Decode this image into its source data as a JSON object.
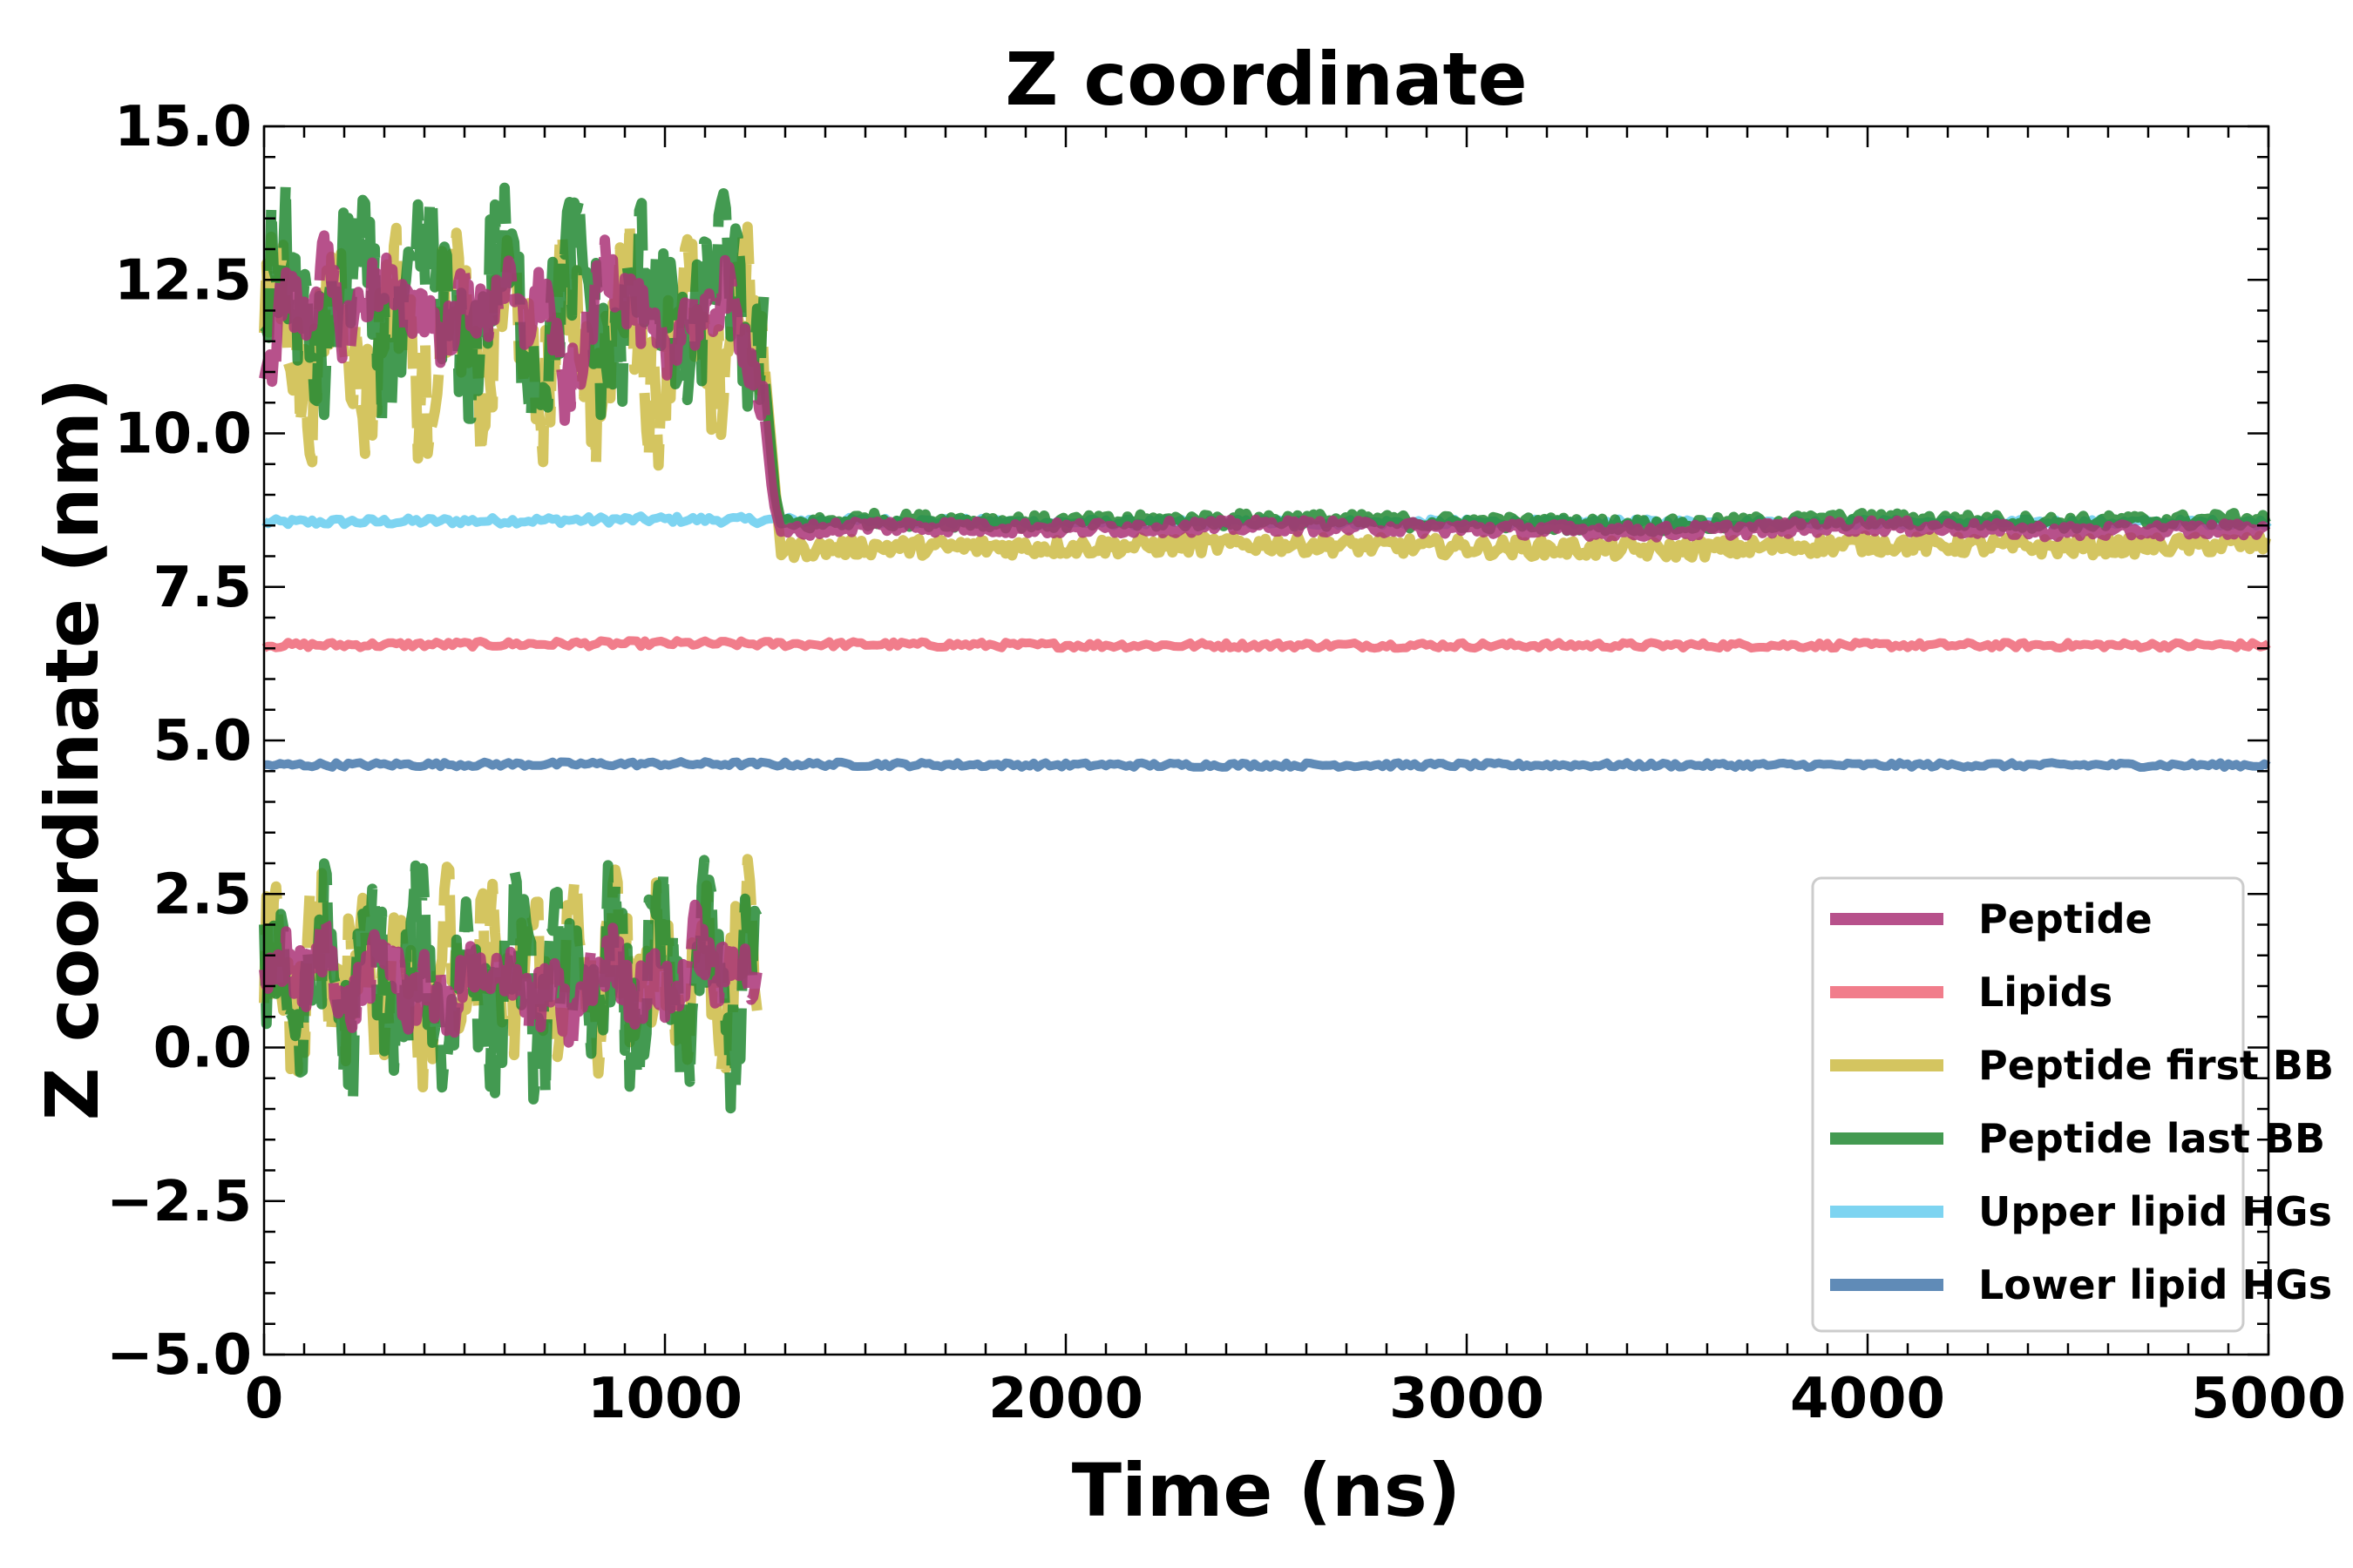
{
  "chart_data": {
    "type": "line",
    "title": "Z coordinate",
    "xlabel": "Time (ns)",
    "ylabel": "Z coordinate (nm)",
    "xlim": [
      0,
      5000
    ],
    "ylim": [
      -5.0,
      15.0
    ],
    "xticks": [
      0,
      1000,
      2000,
      3000,
      4000,
      5000
    ],
    "yticks": [
      -5.0,
      -2.5,
      0.0,
      2.5,
      5.0,
      7.5,
      10.0,
      12.5,
      15.0
    ],
    "xtick_labels": [
      "0",
      "1000",
      "2000",
      "3000",
      "4000",
      "5000"
    ],
    "ytick_labels": [
      "−5.0",
      "−2.5",
      "0.0",
      "2.5",
      "5.0",
      "7.5",
      "10.0",
      "12.5",
      "15.0"
    ],
    "grid": false,
    "legend_position": "lower-right",
    "series": [
      {
        "name": "Peptide",
        "color": "#aa3377",
        "before_transition": "alternates between about 10.5-13 nm and 0-2.5 nm (periodic boundary wrapping)",
        "x": [
          0,
          50,
          100,
          150,
          200,
          250,
          300,
          350,
          400,
          450,
          500,
          550,
          600,
          650,
          700,
          750,
          800,
          850,
          900,
          950,
          1000,
          1050,
          1100,
          1150,
          1200,
          1230,
          1250,
          1270,
          1290,
          1500,
          2000,
          2500,
          3000,
          3500,
          4000,
          4500,
          5000
        ],
        "upper_y": [
          10.5,
          12.4,
          11.8,
          12.8,
          11.6,
          12.2,
          12.6,
          11.9,
          12.1,
          11.5,
          12.3,
          11.8,
          12.5,
          11.7,
          12.4,
          10.6,
          11.4,
          12.8,
          12.3,
          11.8,
          11.2,
          12.0,
          11.7,
          12.4,
          11.5,
          10.8,
          10.2,
          8.9,
          8.4,
          8.5,
          8.45,
          8.5,
          8.45,
          8.4,
          8.5,
          8.4,
          8.45
        ],
        "lower_y": [
          0.8,
          1.5,
          1.0,
          1.8,
          0.5,
          1.2,
          1.6,
          0.7,
          1.1,
          0.5,
          1.3,
          0.9,
          1.4,
          0.6,
          1.0,
          0.3,
          1.2,
          1.5,
          0.8,
          1.1,
          0.7,
          1.9,
          1.0,
          1.6,
          0.8
        ]
      },
      {
        "name": "Lipids",
        "color": "#ee6677",
        "x": [
          0,
          1000,
          2000,
          3000,
          4000,
          5000
        ],
        "y": [
          6.55,
          6.58,
          6.55,
          6.55,
          6.55,
          6.55
        ]
      },
      {
        "name": "Peptide first BB",
        "color": "#ccbb44",
        "before_transition": "alternates between about 10.5-14 nm and -0.5-3.5 nm",
        "x": [
          0,
          1250,
          1290,
          1500,
          2000,
          2500,
          3000,
          3500,
          4000,
          4500,
          5000
        ],
        "y": [
          11.5,
          10.5,
          8.1,
          8.15,
          8.15,
          8.2,
          8.15,
          8.1,
          8.2,
          8.15,
          8.2
        ],
        "lower_y": [
          0.5,
          2.5,
          1.0,
          3.0,
          0.8,
          1.5,
          0.0,
          2.0,
          3.5,
          1.2
        ]
      },
      {
        "name": "Peptide last BB",
        "color": "#228833",
        "before_transition": "alternates between about 10-14 nm and -0.8-2.6 nm",
        "x": [
          0,
          1250,
          1290,
          1500,
          2000,
          2500,
          3000,
          3500,
          4000,
          4500,
          5000
        ],
        "y": [
          12.0,
          10.5,
          8.5,
          8.6,
          8.55,
          8.6,
          8.55,
          8.5,
          8.6,
          8.55,
          8.6
        ],
        "lower_y": [
          2.6,
          -0.8,
          1.5,
          2.4,
          -0.5,
          1.8,
          -0.5,
          2.0,
          0.0,
          2.2
        ]
      },
      {
        "name": "Upper lipid HGs",
        "color": "#66ccee",
        "x": [
          0,
          1000,
          2000,
          3000,
          4000,
          5000
        ],
        "y": [
          8.55,
          8.6,
          8.55,
          8.55,
          8.55,
          8.55
        ]
      },
      {
        "name": "Lower lipid HGs",
        "color": "#4477aa",
        "x": [
          0,
          1000,
          2000,
          3000,
          4000,
          5000
        ],
        "y": [
          4.6,
          4.62,
          4.6,
          4.6,
          4.6,
          4.6
        ]
      }
    ]
  }
}
